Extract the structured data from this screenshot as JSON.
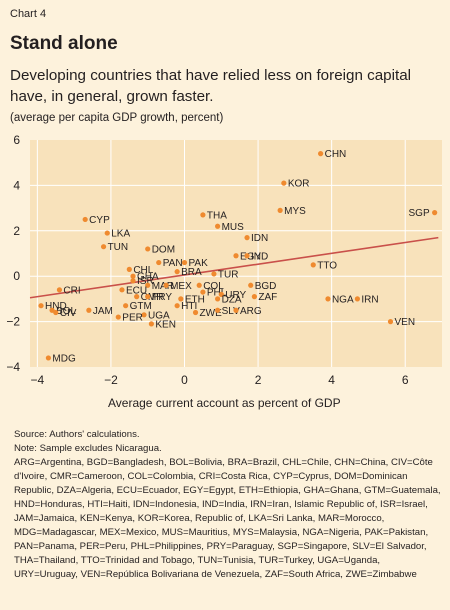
{
  "header": {
    "label": "Chart 4",
    "title": "Stand alone",
    "subtitle": "Developing countries that have relied less on foreign capital have, in general, grown faster.",
    "units": "(average per capita GDP growth, percent)"
  },
  "notes": {
    "source": "Source: Authors' calculations.",
    "note": "Note: Sample excludes Nicaragua.",
    "abbreviations": "ARG=Argentina, BGD=Bangladesh, BOL=Bolivia, BRA=Brazil, CHL=Chile, CHN=China, CIV=Côte d'Ivoire, CMR=Cameroon, COL=Colombia, CRI=Costa Rica, CYP=Cyprus, DOM=Dominican Republic, DZA=Algeria, ECU=Ecuador, EGY=Egypt, ETH=Ethiopia, GHA=Ghana, GTM=Guatemala, HND=Honduras, HTI=Haiti, IDN=Indonesia, IND=India, IRN=Iran, Islamic Republic of, ISR=Israel, JAM=Jamaica, KEN=Kenya, KOR=Korea, Republic of, LKA=Sri Lanka, MAR=Morocco, MDG=Madagascar, MEX=Mexico, MUS=Mauritius, MYS=Malaysia, NGA=Nigeria, PAK=Pakistan, PAN=Panama, PER=Peru, PHL=Philippines, PRY=Paraguay, SGP=Singapore, SLV=El Salvador, THA=Thailand, TTO=Trinidad and Tobago, TUN=Tunisia, TUR=Turkey, UGA=Uganda, URY=Uruguay, VEN=República Bolivariana de Venezuela, ZAF=South Africa, ZWE=Zimbabwe"
  },
  "colors": {
    "plot_bg": "#f8e2bb",
    "page_bg": "#fdf2dc",
    "point": "#ef8a2f",
    "trend": "#c9504a",
    "grid": "#ffffff"
  },
  "chart_data": {
    "type": "scatter",
    "xlabel": "Average current account as percent of GDP",
    "ylabel": "",
    "xlim": [
      -4.2,
      7.0
    ],
    "ylim": [
      -4,
      6
    ],
    "xticks": [
      -4,
      -2,
      0,
      2,
      4,
      6
    ],
    "yticks": [
      -4,
      -2,
      0,
      2,
      4,
      6
    ],
    "grid": true,
    "trendline": {
      "x": [
        -4.2,
        6.9
      ],
      "y": [
        -0.95,
        1.7
      ]
    },
    "points": [
      {
        "label": "CHN",
        "x": 3.7,
        "y": 5.4
      },
      {
        "label": "KOR",
        "x": 2.7,
        "y": 4.1
      },
      {
        "label": "MYS",
        "x": 2.6,
        "y": 2.9
      },
      {
        "label": "SGP",
        "x": 6.8,
        "y": 2.8
      },
      {
        "label": "THA",
        "x": 0.5,
        "y": 2.7
      },
      {
        "label": "MUS",
        "x": 0.9,
        "y": 2.2
      },
      {
        "label": "IDN",
        "x": 1.7,
        "y": 1.7
      },
      {
        "label": "CYP",
        "x": -2.7,
        "y": 2.5
      },
      {
        "label": "LKA",
        "x": -2.1,
        "y": 1.9
      },
      {
        "label": "TUN",
        "x": -2.2,
        "y": 1.3
      },
      {
        "label": "DOM",
        "x": -1.0,
        "y": 1.2
      },
      {
        "label": "EGY",
        "x": 1.4,
        "y": 0.9
      },
      {
        "label": "IND",
        "x": 1.7,
        "y": 0.9
      },
      {
        "label": "TTO",
        "x": 3.5,
        "y": 0.5
      },
      {
        "label": "PAN",
        "x": -0.7,
        "y": 0.6
      },
      {
        "label": "PAK",
        "x": 0.0,
        "y": 0.6
      },
      {
        "label": "CHL",
        "x": -1.5,
        "y": 0.3
      },
      {
        "label": "GHA",
        "x": -1.4,
        "y": 0.0
      },
      {
        "label": "BRA",
        "x": -0.2,
        "y": 0.2
      },
      {
        "label": "TUR",
        "x": 0.8,
        "y": 0.1
      },
      {
        "label": "ISR",
        "x": -1.4,
        "y": -0.2
      },
      {
        "label": "MAR",
        "x": -1.0,
        "y": -0.4
      },
      {
        "label": "MEX",
        "x": -0.5,
        "y": -0.4
      },
      {
        "label": "COL",
        "x": 0.4,
        "y": -0.4
      },
      {
        "label": "BGD",
        "x": 1.8,
        "y": -0.4
      },
      {
        "label": "ECU",
        "x": -1.7,
        "y": -0.6
      },
      {
        "label": "PHL",
        "x": 0.5,
        "y": -0.7
      },
      {
        "label": "URY",
        "x": 1.0,
        "y": -0.8
      },
      {
        "label": "CMR",
        "x": -1.3,
        "y": -0.9
      },
      {
        "label": "PRY",
        "x": -1.0,
        "y": -0.9
      },
      {
        "label": "ETH",
        "x": -0.1,
        "y": -1.0
      },
      {
        "label": "DZA",
        "x": 0.9,
        "y": -1.0
      },
      {
        "label": "ZAF",
        "x": 1.9,
        "y": -0.9
      },
      {
        "label": "IRN",
        "x": 4.7,
        "y": -1.0
      },
      {
        "label": "NGA",
        "x": 3.9,
        "y": -1.0
      },
      {
        "label": "CRI",
        "x": -3.4,
        "y": -0.6
      },
      {
        "label": "HND",
        "x": -3.9,
        "y": -1.3
      },
      {
        "label": "BOL",
        "x": -3.6,
        "y": -1.5
      },
      {
        "label": "CIV",
        "x": -3.5,
        "y": -1.6
      },
      {
        "label": "JAM",
        "x": -2.6,
        "y": -1.5
      },
      {
        "label": "GTM",
        "x": -1.6,
        "y": -1.3
      },
      {
        "label": "HTI",
        "x": -0.2,
        "y": -1.3
      },
      {
        "label": "ZWE",
        "x": 0.3,
        "y": -1.6
      },
      {
        "label": "SLV",
        "x": 0.9,
        "y": -1.5
      },
      {
        "label": "ARG",
        "x": 1.4,
        "y": -1.5
      },
      {
        "label": "UGA",
        "x": -1.1,
        "y": -1.7
      },
      {
        "label": "PER",
        "x": -1.8,
        "y": -1.8
      },
      {
        "label": "KEN",
        "x": -0.9,
        "y": -2.1
      },
      {
        "label": "VEN",
        "x": 5.6,
        "y": -2.0
      },
      {
        "label": "MDG",
        "x": -3.7,
        "y": -3.6
      }
    ]
  }
}
